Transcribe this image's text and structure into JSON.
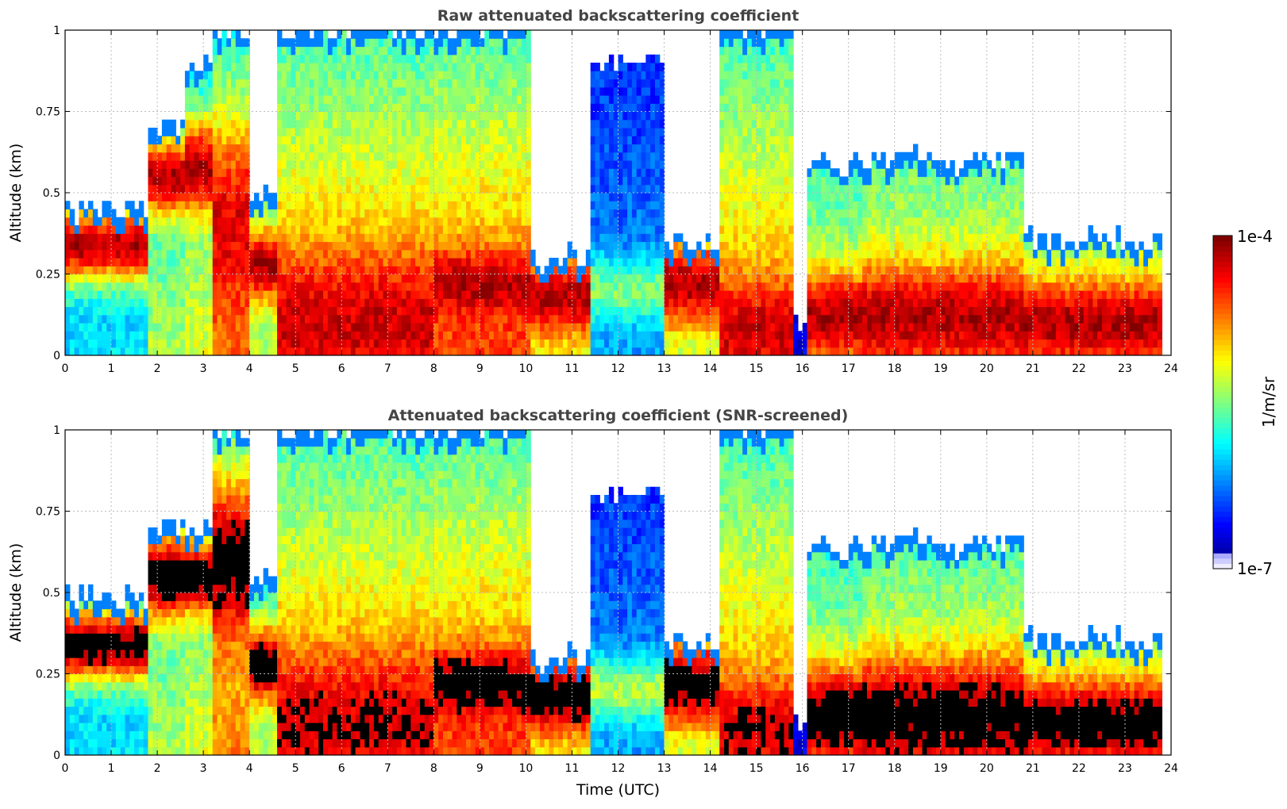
{
  "chart_data": [
    {
      "type": "heatmap",
      "title": "Raw attenuated backscattering coefficient",
      "xlabel": "",
      "ylabel": "Altitude (km)",
      "xlim": [
        0,
        24
      ],
      "ylim": [
        0,
        1
      ],
      "x_ticks": [
        "0",
        "1",
        "2",
        "3",
        "4",
        "5",
        "6",
        "7",
        "8",
        "9",
        "10",
        "11",
        "12",
        "13",
        "14",
        "15",
        "16",
        "17",
        "18",
        "19",
        "20",
        "21",
        "22",
        "23",
        "24"
      ],
      "y_ticks": [
        "0",
        "0.25",
        "0.5",
        "0.75",
        "1"
      ],
      "grid": true,
      "black_saturation": false,
      "color_scale": {
        "min_label": "1e-7",
        "max_label": "1e-4",
        "colormap": "jet"
      },
      "segments": [
        {
          "x0": 0.0,
          "x1": 1.8,
          "level": 0.35,
          "top": 0.45,
          "peak": 0.95,
          "peak_y": 0.34,
          "peak_h": 0.12
        },
        {
          "x0": 1.8,
          "x1": 2.6,
          "level": 0.55,
          "top": 0.7,
          "peak": 0.95,
          "peak_y": 0.55,
          "peak_h": 0.12
        },
        {
          "x0": 2.6,
          "x1": 3.2,
          "level": 0.6,
          "top": 0.9,
          "peak": 0.95,
          "peak_y": 0.58,
          "peak_h": 0.15
        },
        {
          "x0": 3.2,
          "x1": 4.0,
          "level": 0.75,
          "top": 1.0,
          "peak": 0.9,
          "peak_y": 0.4,
          "peak_h": 0.3
        },
        {
          "x0": 4.0,
          "x1": 4.6,
          "level": 0.55,
          "top": 0.5,
          "peak": 0.95,
          "peak_y": 0.28,
          "peak_h": 0.12
        },
        {
          "x0": 4.6,
          "x1": 8.0,
          "level": 0.8,
          "top": 1.0,
          "peak": 0.92,
          "peak_y": 0.1,
          "peak_h": 0.2
        },
        {
          "x0": 8.0,
          "x1": 10.1,
          "level": 0.82,
          "top": 1.0,
          "peak": 0.95,
          "peak_y": 0.22,
          "peak_h": 0.1
        },
        {
          "x0": 10.1,
          "x1": 11.4,
          "level": 0.6,
          "top": 0.3,
          "peak": 0.95,
          "peak_y": 0.18,
          "peak_h": 0.12
        },
        {
          "x0": 11.4,
          "x1": 13.0,
          "level": 0.28,
          "top": 0.9,
          "peak": 0.5,
          "peak_y": 0.2,
          "peak_h": 0.1
        },
        {
          "x0": 13.0,
          "x1": 14.2,
          "level": 0.55,
          "top": 0.35,
          "peak": 0.95,
          "peak_y": 0.22,
          "peak_h": 0.14
        },
        {
          "x0": 14.2,
          "x1": 15.8,
          "level": 0.78,
          "top": 1.0,
          "peak": 0.92,
          "peak_y": 0.08,
          "peak_h": 0.14
        },
        {
          "x0": 15.8,
          "x1": 16.1,
          "level": 0.1,
          "top": 0.1,
          "peak": 0.1,
          "peak_y": 0.1,
          "peak_h": 0.05
        },
        {
          "x0": 16.1,
          "x1": 17.3,
          "level": 0.6,
          "top": 0.6,
          "peak": 0.95,
          "peak_y": 0.12,
          "peak_h": 0.14
        },
        {
          "x0": 17.3,
          "x1": 20.8,
          "level": 0.65,
          "top": 0.6,
          "peak": 0.95,
          "peak_y": 0.12,
          "peak_h": 0.16
        },
        {
          "x0": 20.8,
          "x1": 23.8,
          "level": 0.6,
          "top": 0.35,
          "peak": 0.95,
          "peak_y": 0.1,
          "peak_h": 0.14
        }
      ]
    },
    {
      "type": "heatmap",
      "title": "Attenuated backscattering coefficient (SNR-screened)",
      "xlabel": "Time (UTC)",
      "ylabel": "Altitude (km)",
      "xlim": [
        0,
        24
      ],
      "ylim": [
        0,
        1
      ],
      "x_ticks": [
        "0",
        "1",
        "2",
        "3",
        "4",
        "5",
        "6",
        "7",
        "8",
        "9",
        "10",
        "11",
        "12",
        "13",
        "14",
        "15",
        "16",
        "17",
        "18",
        "19",
        "20",
        "21",
        "22",
        "23",
        "24"
      ],
      "y_ticks": [
        "0",
        "0.25",
        "0.5",
        "0.75",
        "1"
      ],
      "grid": true,
      "black_saturation": true,
      "color_scale": {
        "min_label": "1e-7",
        "max_label": "1e-4",
        "colormap": "jet"
      },
      "segments": [
        {
          "x0": 0.0,
          "x1": 1.8,
          "level": 0.35,
          "top": 0.48,
          "peak": 1.0,
          "peak_y": 0.34,
          "peak_h": 0.12
        },
        {
          "x0": 1.8,
          "x1": 2.6,
          "level": 0.55,
          "top": 0.7,
          "peak": 1.0,
          "peak_y": 0.55,
          "peak_h": 0.14
        },
        {
          "x0": 2.6,
          "x1": 3.2,
          "level": 0.6,
          "top": 0.7,
          "peak": 1.0,
          "peak_y": 0.55,
          "peak_h": 0.12
        },
        {
          "x0": 3.2,
          "x1": 4.0,
          "level": 0.75,
          "top": 1.0,
          "peak": 1.0,
          "peak_y": 0.6,
          "peak_h": 0.25
        },
        {
          "x0": 4.0,
          "x1": 4.6,
          "level": 0.55,
          "top": 0.55,
          "peak": 1.0,
          "peak_y": 0.28,
          "peak_h": 0.12
        },
        {
          "x0": 4.6,
          "x1": 8.0,
          "level": 0.8,
          "top": 1.0,
          "peak": 0.92,
          "peak_y": 0.1,
          "peak_h": 0.2
        },
        {
          "x0": 8.0,
          "x1": 10.1,
          "level": 0.82,
          "top": 1.0,
          "peak": 1.0,
          "peak_y": 0.22,
          "peak_h": 0.1
        },
        {
          "x0": 10.1,
          "x1": 11.4,
          "level": 0.6,
          "top": 0.3,
          "peak": 1.0,
          "peak_y": 0.18,
          "peak_h": 0.12
        },
        {
          "x0": 11.4,
          "x1": 13.0,
          "level": 0.28,
          "top": 0.8,
          "peak": 0.55,
          "peak_y": 0.2,
          "peak_h": 0.1
        },
        {
          "x0": 13.0,
          "x1": 14.2,
          "level": 0.55,
          "top": 0.35,
          "peak": 1.0,
          "peak_y": 0.22,
          "peak_h": 0.14
        },
        {
          "x0": 14.2,
          "x1": 15.8,
          "level": 0.78,
          "top": 1.0,
          "peak": 0.92,
          "peak_y": 0.08,
          "peak_h": 0.14
        },
        {
          "x0": 15.8,
          "x1": 16.1,
          "level": 0.1,
          "top": 0.1,
          "peak": 0.1,
          "peak_y": 0.1,
          "peak_h": 0.05
        },
        {
          "x0": 16.1,
          "x1": 17.3,
          "level": 0.6,
          "top": 0.65,
          "peak": 1.0,
          "peak_y": 0.12,
          "peak_h": 0.16
        },
        {
          "x0": 17.3,
          "x1": 20.8,
          "level": 0.65,
          "top": 0.65,
          "peak": 1.0,
          "peak_y": 0.12,
          "peak_h": 0.18
        },
        {
          "x0": 20.8,
          "x1": 23.8,
          "level": 0.6,
          "top": 0.35,
          "peak": 1.0,
          "peak_y": 0.1,
          "peak_h": 0.14
        }
      ]
    }
  ],
  "colorbar": {
    "label": "1/m/sr",
    "max_label": "1e-4",
    "min_label": "1e-7",
    "colormap": "jet"
  }
}
